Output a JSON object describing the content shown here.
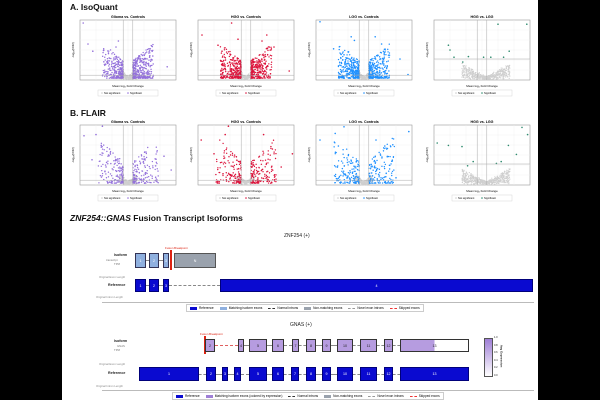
{
  "panels": {
    "a_title": "A. IsoQuant",
    "b_title": "B. FLAIR",
    "c_title_gene": "ZNF254::GNAS",
    "c_title_rest": " Fusion Transcript Isoforms"
  },
  "chart_data": [
    {
      "type": "scatter",
      "method": "IsoQuant",
      "title": "Glioma vs. Controls",
      "xlabel": "Mean log₂ Fold Change",
      "ylabel": "-log₁₀(FDR)",
      "color": "#9370db",
      "legend": [
        "Not significant",
        "Significant"
      ],
      "xlim": [
        -6,
        6
      ],
      "ylim": [
        0,
        10
      ],
      "points": [
        [
          -5.6,
          9.5
        ],
        [
          -5,
          6
        ],
        [
          -4.4,
          4.8
        ],
        [
          -1.5,
          5.5
        ],
        [
          -1.2,
          6.5
        ],
        [
          2.7,
          3.8
        ],
        [
          3.1,
          4
        ],
        [
          4.9,
          2.2
        ],
        [
          1.5,
          3.5
        ],
        [
          -2.5,
          3.2
        ]
      ]
    },
    {
      "type": "scatter",
      "method": "IsoQuant",
      "title": "HGG vs. Controls",
      "xlabel": "Mean log₂ Fold Change",
      "ylabel": "-log₁₀(FDR)",
      "color": "#dc143c",
      "legend": [
        "Not significant",
        "Significant"
      ],
      "xlim": [
        -6,
        6
      ],
      "ylim": [
        0,
        10
      ],
      "points": [
        [
          -5.5,
          7.5
        ],
        [
          -1.8,
          9.5
        ],
        [
          -3.5,
          5.8
        ],
        [
          -1,
          6.8
        ],
        [
          2.6,
          7.5
        ],
        [
          3.5,
          5.5
        ],
        [
          5.4,
          1.5
        ],
        [
          2,
          6.5
        ],
        [
          -3,
          4.8
        ]
      ]
    },
    {
      "type": "scatter",
      "method": "IsoQuant",
      "title": "LGG vs. Controls",
      "xlabel": "Mean log₂ Fold Change",
      "ylabel": "-log₁₀(FDR)",
      "color": "#1e90ff",
      "legend": [
        "Not significant",
        "Significant"
      ],
      "xlim": [
        -6,
        6
      ],
      "ylim": [
        0,
        10
      ],
      "points": [
        [
          -5.5,
          9.7
        ],
        [
          -3.8,
          5.2
        ],
        [
          -1.6,
          7.2
        ],
        [
          -1.2,
          6.6
        ],
        [
          1.4,
          7.2
        ],
        [
          2.2,
          6
        ],
        [
          4.5,
          3.5
        ],
        [
          5.5,
          0.9
        ],
        [
          -2.5,
          4.2
        ]
      ]
    },
    {
      "type": "scatter",
      "method": "IsoQuant",
      "title": "HGG vs. LGG",
      "xlabel": "Mean log₂ Fold Change",
      "ylabel": "-log₁₀(FDR)",
      "color": "#2e8b6e",
      "legend": [
        "Not significant",
        "Significant"
      ],
      "xlim": [
        -6,
        6
      ],
      "ylim": [
        0,
        10
      ],
      "points": [
        [
          -4.2,
          5.8
        ],
        [
          -4,
          5
        ],
        [
          -3.5,
          3.8
        ],
        [
          -2.4,
          3
        ],
        [
          -1.7,
          3.9
        ],
        [
          0.2,
          3.8
        ],
        [
          1.1,
          3.8
        ],
        [
          2,
          9.3
        ],
        [
          3.4,
          4.8
        ],
        [
          2.7,
          3.8
        ],
        [
          5.6,
          9.3
        ]
      ]
    },
    {
      "type": "scatter",
      "method": "FLAIR",
      "title": "Glioma vs. Controls",
      "xlabel": "Mean log₂ Fold Change",
      "ylabel": "-log₁₀(FDR)",
      "color": "#9370db",
      "legend": [
        "Not significant",
        "Significant"
      ],
      "xlim": [
        -6,
        6
      ],
      "ylim": [
        0,
        10
      ],
      "points": [
        [
          -5.5,
          8.2
        ],
        [
          -3.2,
          9.8
        ],
        [
          -4,
          8.4
        ],
        [
          -2.3,
          6
        ],
        [
          2.1,
          5.5
        ],
        [
          3.5,
          4.3
        ],
        [
          4.5,
          4.8
        ],
        [
          5.4,
          2.5
        ],
        [
          -4.5,
          4.2
        ]
      ]
    },
    {
      "type": "scatter",
      "method": "FLAIR",
      "title": "HGG vs. Controls",
      "xlabel": "Mean log₂ Fold Change",
      "ylabel": "-log₁₀(FDR)",
      "color": "#dc143c",
      "legend": [
        "Not significant",
        "Significant"
      ],
      "xlim": [
        -6,
        6
      ],
      "ylim": [
        0,
        10
      ],
      "points": [
        [
          -5.6,
          7.5
        ],
        [
          -2.2,
          9.8
        ],
        [
          -2.6,
          8.4
        ],
        [
          2.2,
          8.4
        ],
        [
          3.3,
          6
        ],
        [
          5.8,
          5.2
        ],
        [
          4.4,
          3
        ],
        [
          -4,
          5.2
        ]
      ]
    },
    {
      "type": "scatter",
      "method": "FLAIR",
      "title": "LGG vs. Controls",
      "xlabel": "Mean log₂ Fold Change",
      "ylabel": "-log₁₀(FDR)",
      "color": "#1e90ff",
      "legend": [
        "Not significant",
        "Significant"
      ],
      "xlim": [
        -6,
        6
      ],
      "ylim": [
        0,
        10
      ],
      "points": [
        [
          -5.5,
          7.5
        ],
        [
          -2.5,
          9.7
        ],
        [
          -3.6,
          8.6
        ],
        [
          1.5,
          7.5
        ],
        [
          2.6,
          6.5
        ],
        [
          3.6,
          6.7
        ],
        [
          5.6,
          8.9
        ],
        [
          4,
          1.2
        ],
        [
          -3.2,
          6.5
        ]
      ]
    },
    {
      "type": "scatter",
      "method": "FLAIR",
      "title": "HGG vs. LGG",
      "xlabel": "Mean log₂ Fold Change",
      "ylabel": "-log₁₀(FDR)",
      "color": "#2e8b6e",
      "legend": [
        "Not significant",
        "Significant"
      ],
      "xlim": [
        -6,
        6
      ],
      "ylim": [
        0,
        10
      ],
      "points": [
        [
          -5.6,
          7
        ],
        [
          -4.2,
          6.6
        ],
        [
          -2.5,
          6.4
        ],
        [
          -1.8,
          3.2
        ],
        [
          -1.1,
          3.9
        ],
        [
          1.8,
          3.6
        ],
        [
          2.4,
          3.9
        ],
        [
          3.3,
          6.6
        ],
        [
          4.3,
          5.1
        ],
        [
          5.7,
          8.4
        ],
        [
          5,
          9.6
        ]
      ]
    }
  ],
  "znf": {
    "title": "ZNF254 (+)",
    "isoform_label": "Isoform",
    "isoform_sub1": "transcript",
    "isoform_sub2": "TPM",
    "reference_label": "Reference",
    "breakpoint_label": "Fusion Breakpoint",
    "exon_len_label": "Original Exon Length",
    "intron_len_label": "Original Intron Length",
    "iso_exons": [
      "1",
      "2",
      "3"
    ],
    "nonmatch_exon": "N",
    "ref_exons": [
      "1",
      "2",
      "3",
      "4"
    ]
  },
  "gnas": {
    "title": "GNAS (+)",
    "isoform_label": "Isoform",
    "isoform_sub1": "GNAS",
    "isoform_sub2": "TPM",
    "reference_label": "Reference",
    "breakpoint_label": "Fusion Breakpoint",
    "exon_len_label": "Original Exon Length",
    "intron_len_label": "Original Intron Length",
    "iso_exons": [
      "2",
      "4",
      "5",
      "6",
      "7",
      "8",
      "9",
      "10",
      "11",
      "12",
      "13"
    ],
    "ref_exons": [
      "1",
      "2",
      "3",
      "4",
      "5",
      "6",
      "7",
      "8",
      "9",
      "10",
      "11",
      "12",
      "13"
    ],
    "last_exon_expression": 0.5,
    "colorbar_label": "Avg Expression",
    "colorbar_ticks": [
      "1.0",
      "0.8",
      "0.6",
      "0.4",
      "0.2",
      "0.0"
    ]
  },
  "legend1": [
    "Reference",
    "Matching isoform exons",
    "Normal introns",
    "Non-matching exons",
    "Novel exon introns",
    "Skipped exons"
  ],
  "legend2": [
    "Reference",
    "Matching isoform exons (colored by expression)",
    "Normal introns",
    "Non-matching exons",
    "Novel exon introns",
    "Skipped exons"
  ]
}
